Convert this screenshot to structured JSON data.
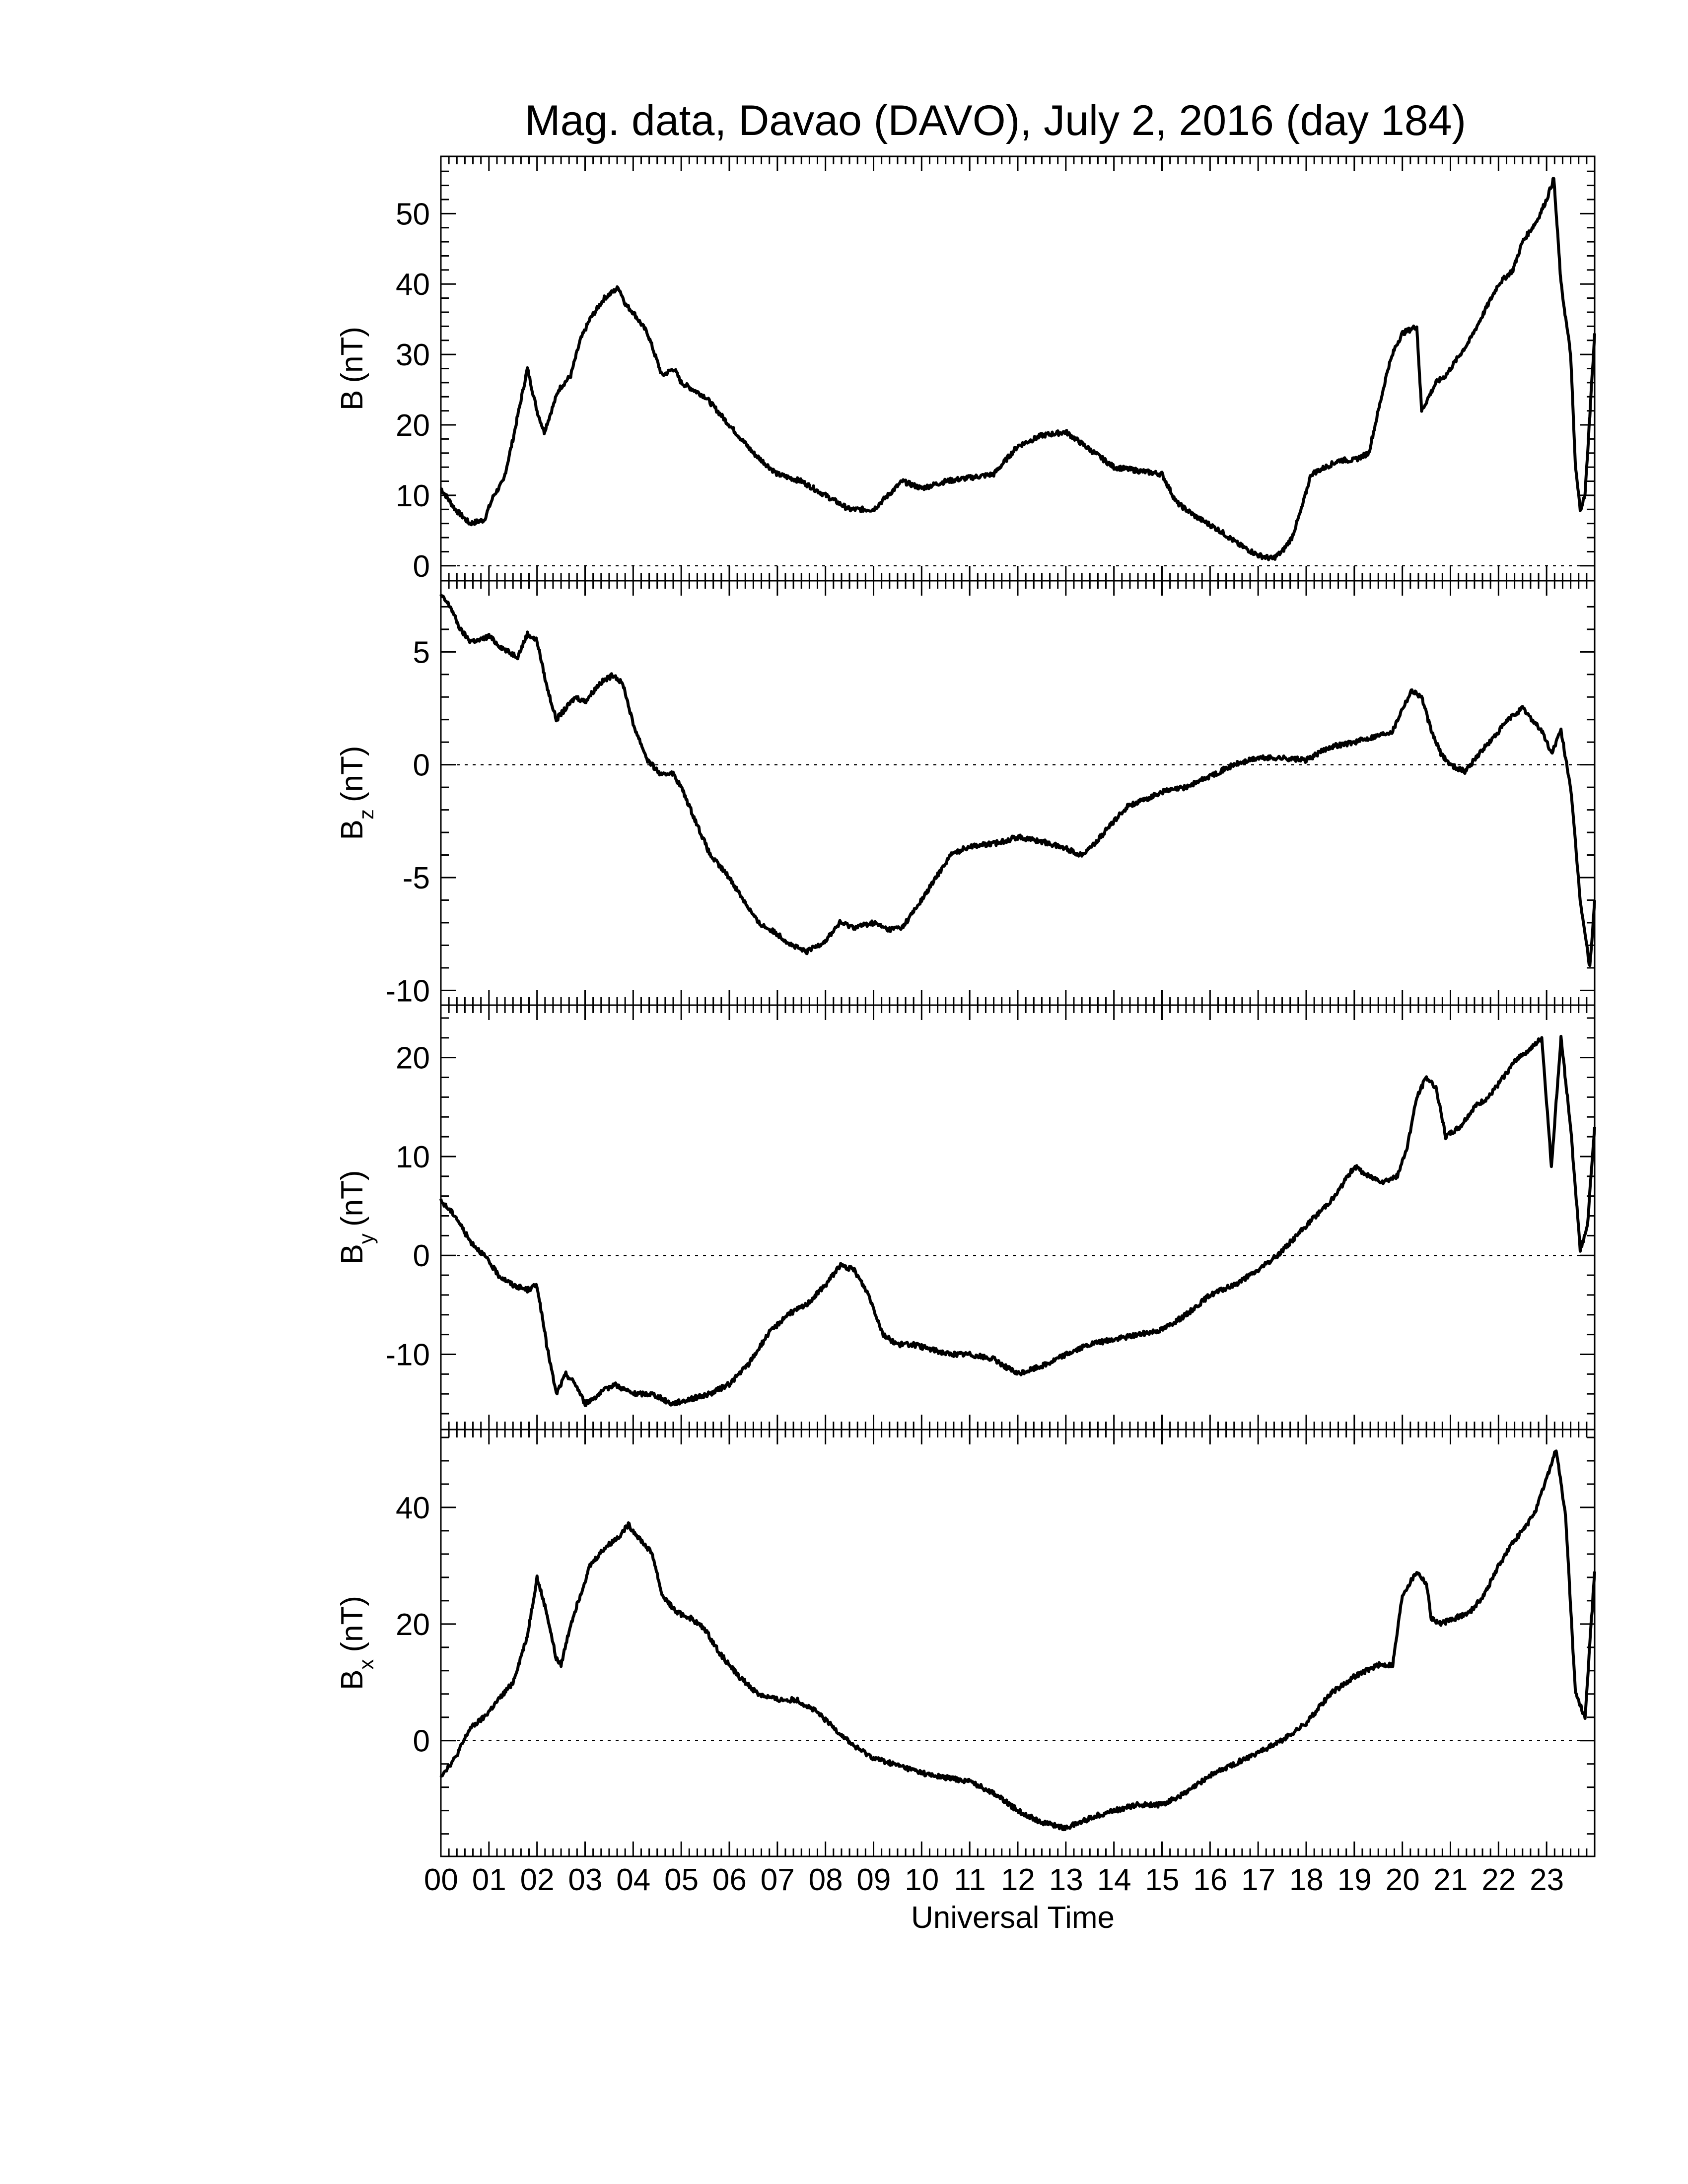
{
  "chart_data": {
    "type": "line",
    "title": "Mag. data, Davao (DAVO), July 2, 2016 (day 184)",
    "xlabel": "Universal Time",
    "x_tick_labels": [
      "00",
      "01",
      "02",
      "03",
      "04",
      "05",
      "06",
      "07",
      "08",
      "09",
      "10",
      "11",
      "12",
      "13",
      "14",
      "15",
      "16",
      "17",
      "18",
      "19",
      "20",
      "21",
      "22",
      "23"
    ],
    "xlim": [
      0,
      24
    ],
    "panels": [
      {
        "id": "B",
        "ylabel_main": "B",
        "ylabel_sub": "",
        "ylabel_unit": "(nT)",
        "ylim": [
          -1,
          57
        ],
        "yticks": [
          0,
          10,
          20,
          30,
          40,
          50
        ],
        "ytick_labels": [
          "0",
          "10",
          "20",
          "30",
          "40",
          "50"
        ],
        "zero_line": true,
        "series": [
          {
            "x": [
              0,
              0.3,
              0.6,
              0.9,
              1.1,
              1.3,
              1.5,
              1.8,
              2.0,
              2.15,
              2.3,
              2.45,
              2.7,
              2.9,
              3.1,
              3.4,
              3.7,
              3.85,
              4.0,
              4.3,
              4.6,
              4.85,
              5.0,
              5.5,
              6.0,
              6.5,
              7.0,
              7.5,
              8.0,
              8.5,
              9.0,
              9.3,
              9.6,
              10.0,
              10.5,
              11.0,
              11.5,
              12.0,
              12.5,
              13.0,
              13.3,
              13.6,
              14.0,
              14.5,
              15.0,
              15.3,
              15.7,
              16.2,
              16.6,
              17.0,
              17.3,
              17.5,
              17.7,
              17.9,
              18.1,
              18.4,
              18.7,
              19.0,
              19.3,
              19.7,
              19.85,
              20.0,
              20.3,
              20.4,
              20.55,
              20.7,
              20.9,
              21.1,
              21.4,
              21.7,
              22.0,
              22.3,
              22.5,
              22.8,
              23.0,
              23.15,
              23.3,
              23.5,
              23.6,
              23.7,
              23.8,
              24.0
            ],
            "y": [
              11,
              8,
              6,
              6.5,
              10,
              12,
              18,
              28,
              22,
              19,
              22,
              25,
              27,
              32,
              35,
              38,
              39.5,
              37,
              36,
              33,
              27,
              28,
              26,
              24,
              20,
              16,
              13,
              12,
              10,
              8,
              8,
              10,
              12,
              11,
              12,
              12.5,
              13,
              17,
              18.5,
              19,
              17.5,
              16,
              14,
              13.5,
              13,
              9,
              7,
              5,
              3,
              1.5,
              1,
              2,
              4,
              8,
              13,
              14,
              15,
              15,
              16,
              28,
              31,
              33,
              34,
              22,
              24,
              26,
              27,
              29,
              32,
              36,
              40,
              42,
              46,
              49,
              52,
              55,
              40,
              30,
              14,
              8,
              10,
              33
            ]
          }
        ]
      },
      {
        "id": "Bz",
        "ylabel_main": "B",
        "ylabel_sub": "z",
        "ylabel_unit": "(nT)",
        "ylim": [
          -10.3,
          7.8
        ],
        "yticks": [
          -10,
          -5,
          0,
          5
        ],
        "ytick_labels": [
          "-10",
          "-5",
          "0",
          "5"
        ],
        "zero_line": true,
        "series": [
          {
            "x": [
              0,
              0.2,
              0.4,
              0.6,
              0.8,
              1.0,
              1.2,
              1.4,
              1.6,
              1.8,
              2.0,
              2.2,
              2.4,
              2.6,
              2.8,
              3.0,
              3.3,
              3.6,
              3.8,
              4.0,
              4.3,
              4.6,
              4.8,
              5.0,
              5.3,
              5.6,
              6.0,
              6.3,
              6.6,
              7.0,
              7.3,
              7.6,
              8.0,
              8.3,
              8.6,
              9.0,
              9.3,
              9.6,
              10.0,
              10.3,
              10.6,
              11.0,
              11.5,
              12.0,
              12.5,
              13.0,
              13.3,
              13.6,
              14.0,
              14.3,
              14.6,
              15.0,
              15.5,
              16.0,
              16.5,
              17.0,
              17.5,
              18.0,
              18.5,
              19.0,
              19.5,
              19.8,
              20.0,
              20.2,
              20.4,
              20.6,
              20.8,
              21.0,
              21.3,
              21.6,
              21.9,
              22.2,
              22.5,
              22.7,
              22.9,
              23.1,
              23.3,
              23.5,
              23.7,
              23.9,
              24.0
            ],
            "y": [
              7.5,
              7,
              6,
              5.5,
              5.5,
              5.7,
              5.3,
              5,
              4.8,
              5.8,
              5.5,
              3.5,
              2,
              2.5,
              3,
              2.8,
              3.6,
              4,
              3.5,
              1.8,
              0.2,
              -0.5,
              -0.3,
              -1,
              -2.5,
              -4,
              -5,
              -6,
              -7,
              -7.5,
              -8,
              -8.3,
              -7.8,
              -7,
              -7.2,
              -7,
              -7.3,
              -7.2,
              -6,
              -5,
              -4,
              -3.6,
              -3.5,
              -3.2,
              -3.4,
              -3.7,
              -4,
              -3.5,
              -2.5,
              -1.8,
              -1.6,
              -1.2,
              -1,
              -0.5,
              0,
              0.3,
              0.3,
              0.2,
              0.8,
              1,
              1.3,
              1.5,
              2.5,
              3.3,
              3,
              1.5,
              0.5,
              0,
              -0.3,
              0.5,
              1.2,
              2,
              2.5,
              2,
              1.5,
              0.5,
              1.5,
              -1,
              -6,
              -9,
              -6
            ]
          }
        ]
      },
      {
        "id": "By",
        "ylabel_main": "B",
        "ylabel_sub": "y",
        "ylabel_unit": "(nT)",
        "ylim": [
          -16.8,
          24.5
        ],
        "yticks": [
          -10,
          0,
          10,
          20
        ],
        "ytick_labels": [
          "-10",
          "0",
          "10",
          "20"
        ],
        "zero_line": true,
        "series": [
          {
            "x": [
              0,
              0.3,
              0.6,
              0.9,
              1.2,
              1.5,
              1.8,
              2.0,
              2.2,
              2.4,
              2.6,
              2.8,
              3.0,
              3.3,
              3.6,
              4.0,
              4.4,
              4.8,
              5.2,
              5.6,
              6.0,
              6.4,
              6.8,
              7.2,
              7.6,
              8.0,
              8.3,
              8.6,
              8.9,
              9.2,
              9.5,
              9.8,
              10.2,
              10.6,
              11.0,
              11.5,
              12.0,
              12.3,
              12.6,
              13.0,
              13.5,
              14.0,
              14.5,
              15.0,
              15.5,
              16.0,
              16.5,
              17.0,
              17.4,
              17.8,
              18.2,
              18.6,
              19.0,
              19.3,
              19.6,
              19.9,
              20.1,
              20.3,
              20.5,
              20.7,
              20.9,
              21.2,
              21.5,
              21.8,
              22.1,
              22.4,
              22.7,
              22.9,
              23.1,
              23.3,
              23.5,
              23.7,
              23.85,
              24.0
            ],
            "y": [
              5.5,
              4,
              1.5,
              0,
              -2,
              -3,
              -3.5,
              -3,
              -9,
              -14,
              -12,
              -13,
              -15,
              -14,
              -13,
              -14,
              -14,
              -15,
              -14.5,
              -14,
              -13,
              -11,
              -8,
              -6,
              -5,
              -3,
              -1,
              -1.5,
              -4,
              -8,
              -9,
              -9,
              -9.5,
              -10,
              -10,
              -10.5,
              -12,
              -11.5,
              -11,
              -10,
              -9,
              -8.5,
              -8,
              -7.5,
              -6,
              -4,
              -3,
              -1.5,
              0,
              2,
              4,
              6,
              9,
              8,
              7.5,
              8,
              11,
              16,
              18,
              17,
              12,
              13,
              15,
              16,
              18,
              20,
              21,
              22,
              9,
              22,
              13,
              0.5,
              3,
              13
            ]
          }
        ]
      },
      {
        "id": "Bx",
        "ylabel_main": "B",
        "ylabel_sub": "x",
        "ylabel_unit": "(nT)",
        "ylim": [
          -18.5,
          52
        ],
        "yticks": [
          0,
          20,
          40
        ],
        "ytick_labels": [
          "0",
          "20",
          "40"
        ],
        "zero_line": true,
        "series": [
          {
            "x": [
              0,
              0.3,
              0.6,
              0.9,
              1.2,
              1.5,
              1.8,
              2.0,
              2.2,
              2.4,
              2.5,
              2.7,
              2.9,
              3.1,
              3.4,
              3.7,
              3.9,
              4.1,
              4.4,
              4.6,
              4.9,
              5.2,
              5.5,
              5.8,
              6.2,
              6.6,
              7.0,
              7.4,
              7.8,
              8.2,
              8.6,
              9.0,
              9.4,
              9.8,
              10.2,
              10.6,
              11.0,
              11.5,
              12.0,
              12.5,
              13.0,
              13.3,
              13.6,
              14.0,
              14.5,
              15.0,
              15.5,
              16.0,
              16.5,
              17.0,
              17.5,
              18.0,
              18.5,
              19.0,
              19.5,
              19.8,
              20.0,
              20.3,
              20.5,
              20.6,
              20.8,
              21.1,
              21.4,
              21.7,
              22.0,
              22.3,
              22.6,
              22.8,
              23.0,
              23.2,
              23.4,
              23.6,
              23.8,
              24.0
            ],
            "y": [
              -6,
              -3,
              2,
              4,
              7,
              10,
              18,
              28,
              22,
              14,
              13,
              20,
              25,
              30,
              33,
              35,
              37,
              35,
              32,
              25,
              22,
              21,
              19,
              15,
              11,
              8,
              7,
              7,
              5,
              2,
              -1,
              -3,
              -4,
              -5,
              -6,
              -6.5,
              -7,
              -9,
              -12,
              -14,
              -15,
              -14,
              -13,
              -12,
              -11,
              -11,
              -9,
              -6,
              -4,
              -2,
              0,
              3,
              8,
              11,
              13,
              13,
              25,
              29,
              27,
              21,
              20,
              21,
              22,
              25,
              30,
              34,
              37,
              40,
              45,
              50,
              38,
              8,
              4,
              29
            ]
          }
        ]
      }
    ]
  }
}
